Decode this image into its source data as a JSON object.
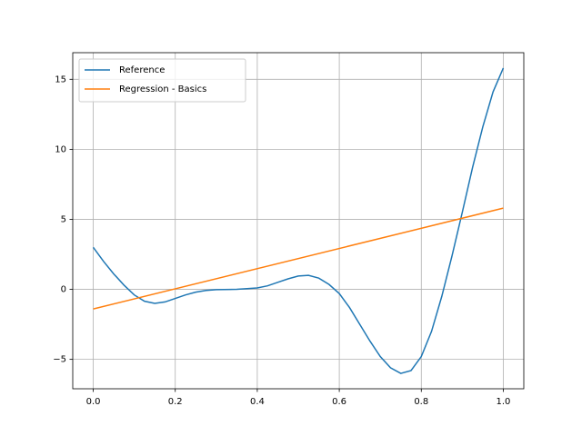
{
  "chart_data": {
    "type": "line",
    "x": [
      0,
      0.025,
      0.05,
      0.075,
      0.1,
      0.125,
      0.15,
      0.175,
      0.2,
      0.225,
      0.25,
      0.275,
      0.3,
      0.35,
      0.4,
      0.425,
      0.45,
      0.475,
      0.5,
      0.525,
      0.55,
      0.575,
      0.6,
      0.625,
      0.65,
      0.675,
      0.7,
      0.725,
      0.75,
      0.775,
      0.8,
      0.825,
      0.85,
      0.875,
      0.9,
      0.925,
      0.95,
      0.975,
      1.0
    ],
    "series": [
      {
        "name": "Reference",
        "color": "#1f77b4",
        "values": [
          3.0,
          2.0,
          1.1,
          0.3,
          -0.4,
          -0.85,
          -1.0,
          -0.9,
          -0.65,
          -0.4,
          -0.2,
          -0.08,
          -0.02,
          0.0,
          0.1,
          0.25,
          0.5,
          0.75,
          0.95,
          1.0,
          0.8,
          0.35,
          -0.3,
          -1.3,
          -2.5,
          -3.7,
          -4.8,
          -5.6,
          -6.0,
          -5.8,
          -4.8,
          -3.0,
          -0.5,
          2.4,
          5.5,
          8.7,
          11.6,
          14.1,
          15.8
        ]
      },
      {
        "name": "Regression - Basics",
        "color": "#ff7f0e",
        "x": [
          0,
          1.0
        ],
        "values": [
          -1.4,
          5.8
        ]
      }
    ],
    "xlim": [
      -0.05,
      1.05
    ],
    "ylim": [
      -7.1,
      16.9
    ],
    "xticks": [
      {
        "value": 0,
        "label": "0.0"
      },
      {
        "value": 0.2,
        "label": "0.2"
      },
      {
        "value": 0.4,
        "label": "0.4"
      },
      {
        "value": 0.6,
        "label": "0.6"
      },
      {
        "value": 0.8,
        "label": "0.8"
      },
      {
        "value": 1.0,
        "label": "1.0"
      }
    ],
    "yticks": [
      {
        "value": -5,
        "label": "−5"
      },
      0,
      5,
      10,
      15
    ],
    "grid": true,
    "legend": "upper-left"
  }
}
